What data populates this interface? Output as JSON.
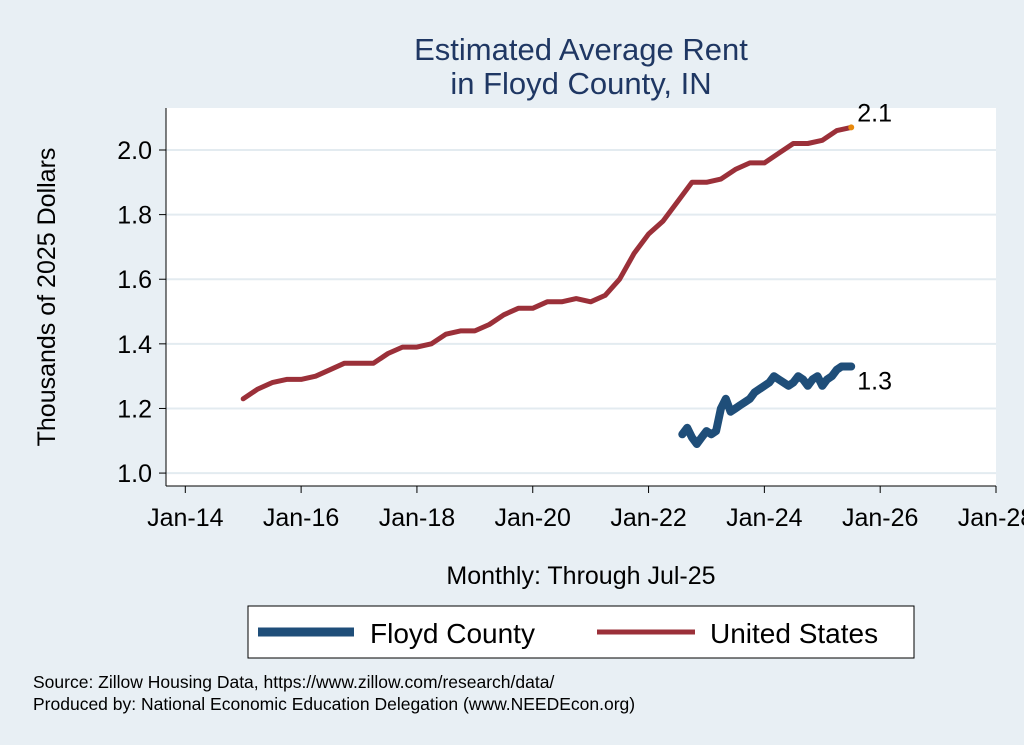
{
  "chart_data": {
    "type": "line",
    "title": [
      "Estimated Average Rent",
      "in Floyd County, IN"
    ],
    "xlabel": "Monthly: Through Jul-25",
    "ylabel": "Thousands of 2025 Dollars",
    "x_ticks": [
      "Jan-14",
      "Jan-16",
      "Jan-18",
      "Jan-20",
      "Jan-22",
      "Jan-24",
      "Jan-26",
      "Jan-28"
    ],
    "y_ticks": [
      "1.0",
      "1.2",
      "1.4",
      "1.6",
      "1.8",
      "2.0"
    ],
    "xlim": [
      "2013-09",
      "2028-01"
    ],
    "ylim": [
      0.96,
      2.13
    ],
    "grid": true,
    "legend_position": "bottom",
    "series": [
      {
        "name": "Floyd County",
        "color": "#1f4e79",
        "end_label": "1.3",
        "points": [
          [
            "2022-08",
            1.12
          ],
          [
            "2022-09",
            1.14
          ],
          [
            "2022-10",
            1.11
          ],
          [
            "2022-11",
            1.09
          ],
          [
            "2022-12",
            1.11
          ],
          [
            "2023-01",
            1.13
          ],
          [
            "2023-02",
            1.12
          ],
          [
            "2023-03",
            1.13
          ],
          [
            "2023-04",
            1.2
          ],
          [
            "2023-05",
            1.23
          ],
          [
            "2023-06",
            1.19
          ],
          [
            "2023-07",
            1.2
          ],
          [
            "2023-08",
            1.21
          ],
          [
            "2023-09",
            1.22
          ],
          [
            "2023-10",
            1.23
          ],
          [
            "2023-11",
            1.25
          ],
          [
            "2023-12",
            1.26
          ],
          [
            "2024-01",
            1.27
          ],
          [
            "2024-02",
            1.28
          ],
          [
            "2024-03",
            1.3
          ],
          [
            "2024-04",
            1.29
          ],
          [
            "2024-05",
            1.28
          ],
          [
            "2024-06",
            1.27
          ],
          [
            "2024-07",
            1.28
          ],
          [
            "2024-08",
            1.3
          ],
          [
            "2024-09",
            1.29
          ],
          [
            "2024-10",
            1.27
          ],
          [
            "2024-11",
            1.29
          ],
          [
            "2024-12",
            1.3
          ],
          [
            "2025-01",
            1.27
          ],
          [
            "2025-02",
            1.29
          ],
          [
            "2025-03",
            1.3
          ],
          [
            "2025-04",
            1.32
          ],
          [
            "2025-05",
            1.33
          ],
          [
            "2025-06",
            1.33
          ],
          [
            "2025-07",
            1.33
          ]
        ]
      },
      {
        "name": "United States",
        "color": "#9b3039",
        "end_label": "2.1",
        "points": [
          [
            "2015-01",
            1.23
          ],
          [
            "2015-04",
            1.26
          ],
          [
            "2015-07",
            1.28
          ],
          [
            "2015-10",
            1.29
          ],
          [
            "2016-01",
            1.29
          ],
          [
            "2016-04",
            1.3
          ],
          [
            "2016-07",
            1.32
          ],
          [
            "2016-10",
            1.34
          ],
          [
            "2017-01",
            1.34
          ],
          [
            "2017-04",
            1.34
          ],
          [
            "2017-07",
            1.37
          ],
          [
            "2017-10",
            1.39
          ],
          [
            "2018-01",
            1.39
          ],
          [
            "2018-04",
            1.4
          ],
          [
            "2018-07",
            1.43
          ],
          [
            "2018-10",
            1.44
          ],
          [
            "2019-01",
            1.44
          ],
          [
            "2019-04",
            1.46
          ],
          [
            "2019-07",
            1.49
          ],
          [
            "2019-10",
            1.51
          ],
          [
            "2020-01",
            1.51
          ],
          [
            "2020-04",
            1.53
          ],
          [
            "2020-07",
            1.53
          ],
          [
            "2020-10",
            1.54
          ],
          [
            "2021-01",
            1.53
          ],
          [
            "2021-04",
            1.55
          ],
          [
            "2021-07",
            1.6
          ],
          [
            "2021-10",
            1.68
          ],
          [
            "2022-01",
            1.74
          ],
          [
            "2022-04",
            1.78
          ],
          [
            "2022-07",
            1.84
          ],
          [
            "2022-10",
            1.9
          ],
          [
            "2023-01",
            1.9
          ],
          [
            "2023-04",
            1.91
          ],
          [
            "2023-07",
            1.94
          ],
          [
            "2023-10",
            1.96
          ],
          [
            "2024-01",
            1.96
          ],
          [
            "2024-04",
            1.99
          ],
          [
            "2024-07",
            2.02
          ],
          [
            "2024-10",
            2.02
          ],
          [
            "2025-01",
            2.03
          ],
          [
            "2025-04",
            2.06
          ],
          [
            "2025-07",
            2.07
          ]
        ],
        "end_marker_color": "#e8890c"
      }
    ],
    "notes": [
      "Source: Zillow Housing Data, https://www.zillow.com/research/data/",
      "Produced by: National Economic Education Delegation (www.NEEDEcon.org)"
    ]
  }
}
